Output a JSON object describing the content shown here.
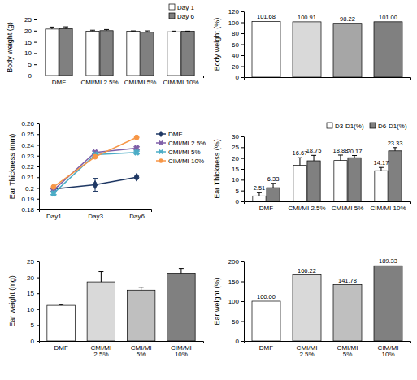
{
  "chart_data": [
    {
      "type": "bar",
      "y_label": "Body weight (g)",
      "categories": [
        "DMF",
        "CMI/MI 2.5%",
        "CMI/MI 5%",
        "CIM/MI 10%"
      ],
      "series": [
        {
          "name": "Day 1",
          "color": "#ffffff",
          "values": [
            20.7,
            19.8,
            19.7,
            19.5
          ],
          "errors": [
            0.9,
            0.4,
            0.2,
            0.3
          ]
        },
        {
          "name": "Day 6",
          "color": "#808080",
          "values": [
            20.8,
            20.0,
            19.3,
            19.7
          ],
          "errors": [
            0.9,
            0.5,
            0.6,
            0.1
          ]
        }
      ],
      "ylim": [
        0,
        25
      ],
      "yticks": [
        0,
        5,
        10,
        15,
        20,
        25
      ],
      "legend": "top-right"
    },
    {
      "type": "bar",
      "y_label": "Body weight (%)",
      "categories": [
        null,
        null,
        null,
        null
      ],
      "values": [
        101.68,
        100.91,
        98.22,
        101.0
      ],
      "value_labels": [
        "101.68",
        "100.91",
        "98.22",
        "101.00"
      ],
      "colors": [
        "#ffffff",
        "#d9d9d9",
        "#a6a6a6",
        "#808080"
      ],
      "data_labels": true,
      "ylim": [
        0,
        120
      ],
      "yticks": [
        0,
        20,
        40,
        60,
        80,
        100,
        120
      ]
    },
    {
      "type": "line",
      "y_label": "Ear Thickness (mm)",
      "categories": [
        "Day1",
        "Day3",
        "Day6"
      ],
      "series": [
        {
          "name": "DMF",
          "color": "#1f3864",
          "marker": "diamond",
          "values": [
            0.199,
            0.203,
            0.21
          ],
          "errors": [
            0.001,
            0.006,
            0.001
          ]
        },
        {
          "name": "CMI/MI 2.5%",
          "color": "#7f5fa8",
          "marker": "x",
          "values": [
            0.198,
            0.233,
            0.237
          ]
        },
        {
          "name": "CMI/MI 5%",
          "color": "#4bacc6",
          "marker": "x",
          "values": [
            0.195,
            0.231,
            0.233
          ]
        },
        {
          "name": "CIM/MI 10%",
          "color": "#f79646",
          "marker": "circle",
          "values": [
            0.201,
            0.229,
            0.247
          ]
        }
      ],
      "ylim": [
        0.18,
        0.26
      ],
      "yticks": [
        0.18,
        0.19,
        0.2,
        0.21,
        0.22,
        0.23,
        0.24,
        0.25,
        0.26
      ],
      "legend": "right"
    },
    {
      "type": "bar",
      "y_label": "Ear Thickness (%)",
      "categories": [
        "DMF",
        "CMI/MI 2.5%",
        "CMI/MI 5%",
        "CIM/MI 10%"
      ],
      "series": [
        {
          "name": "D3-D1(%)",
          "color": "#ffffff",
          "values": [
            2.51,
            16.67,
            18.88,
            14.17
          ],
          "errors": [
            1.5,
            3.5,
            2.5,
            1.5
          ]
        },
        {
          "name": "D6-D1(%)",
          "color": "#808080",
          "values": [
            6.33,
            18.75,
            20.17,
            23.33
          ],
          "errors": [
            2.0,
            2.5,
            1.0,
            1.5
          ]
        }
      ],
      "data_labels": true,
      "ylim": [
        0,
        30
      ],
      "yticks": [
        0,
        5,
        10,
        15,
        20,
        25,
        30
      ],
      "legend": "top"
    },
    {
      "type": "bar",
      "y_label": "Ear weight (mg)",
      "categories": [
        "DMF",
        "CMI/MI 2.5%",
        "CMI/MI 5%",
        "CIM/MI 10%"
      ],
      "values": [
        11.2,
        18.6,
        16.0,
        21.3
      ],
      "errors": [
        0.2,
        3.2,
        0.9,
        1.5
      ],
      "colors": [
        "#ffffff",
        "#d9d9d9",
        "#bfbfbf",
        "#808080"
      ],
      "ylim": [
        0,
        25
      ],
      "yticks": [
        0,
        5,
        10,
        15,
        20,
        25
      ]
    },
    {
      "type": "bar",
      "y_label": "Ear weight (%)",
      "categories": [
        "DMF",
        "CMI/MI 2.5%",
        "CMI/MI 5%",
        "CIM/MI 10%"
      ],
      "values": [
        100.0,
        166.22,
        141.78,
        189.33
      ],
      "value_labels": [
        "100.00",
        "166.22",
        "141.78",
        "189.33"
      ],
      "colors": [
        "#ffffff",
        "#d9d9d9",
        "#bfbfbf",
        "#808080"
      ],
      "data_labels": true,
      "ylim": [
        0,
        200
      ],
      "yticks": [
        0,
        50,
        100,
        150,
        200
      ]
    }
  ]
}
